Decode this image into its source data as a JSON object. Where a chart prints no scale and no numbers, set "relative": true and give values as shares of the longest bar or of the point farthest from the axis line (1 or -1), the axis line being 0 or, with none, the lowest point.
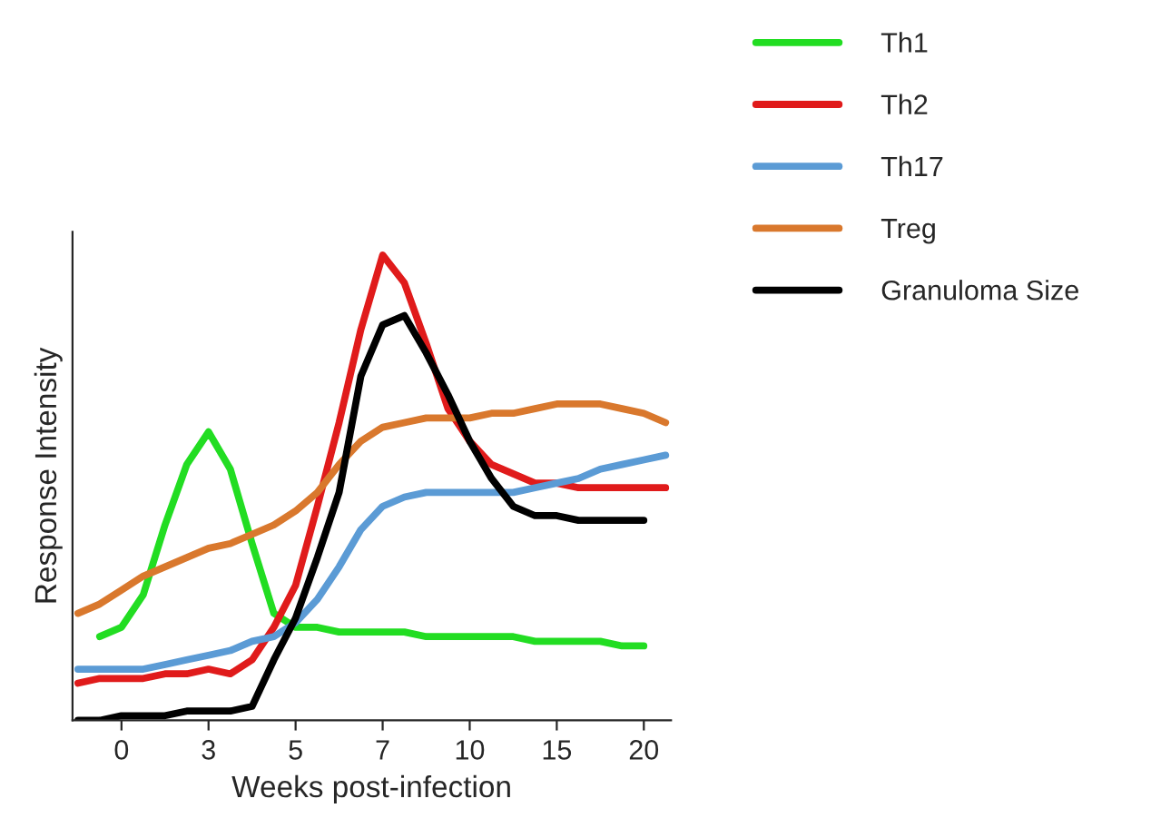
{
  "chart_data": {
    "type": "line",
    "xlabel": "Weeks post-infection",
    "ylabel": "Response Intensity",
    "relative": true,
    "legend": "top right",
    "grid": false,
    "categories": [
      null,
      null,
      "0",
      null,
      null,
      null,
      "3",
      null,
      null,
      null,
      "5",
      null,
      null,
      null,
      "7",
      null,
      null,
      null,
      "10",
      null,
      null,
      null,
      "15",
      null,
      null,
      null,
      "20",
      null
    ],
    "series": [
      {
        "name": "Th1",
        "color": "#22dd22",
        "values": [
          null,
          0.18,
          0.2,
          0.27,
          0.42,
          0.55,
          0.62,
          0.54,
          0.38,
          0.23,
          0.2,
          0.2,
          0.19,
          0.19,
          0.19,
          0.19,
          0.18,
          0.18,
          0.18,
          0.18,
          0.18,
          0.17,
          0.17,
          0.17,
          0.17,
          0.16,
          0.16,
          null
        ]
      },
      {
        "name": "Th2",
        "color": "#e01b1b",
        "values": [
          0.08,
          0.09,
          0.09,
          0.09,
          0.1,
          0.1,
          0.11,
          0.1,
          0.13,
          0.2,
          0.29,
          0.46,
          0.64,
          0.84,
          1.0,
          0.94,
          0.81,
          0.67,
          0.6,
          0.55,
          0.53,
          0.51,
          0.51,
          0.5,
          0.5,
          0.5,
          0.5,
          0.5
        ]
      },
      {
        "name": "Th17",
        "color": "#5b9bd5",
        "values": [
          0.11,
          0.11,
          0.11,
          0.11,
          0.12,
          0.13,
          0.14,
          0.15,
          0.17,
          0.18,
          0.21,
          0.26,
          0.33,
          0.41,
          0.46,
          0.48,
          0.49,
          0.49,
          0.49,
          0.49,
          0.49,
          0.5,
          0.51,
          0.52,
          0.54,
          0.55,
          0.56,
          0.57
        ]
      },
      {
        "name": "Treg",
        "color": "#d9782d",
        "values": [
          0.23,
          0.25,
          0.28,
          0.31,
          0.33,
          0.35,
          0.37,
          0.38,
          0.4,
          0.42,
          0.45,
          0.49,
          0.55,
          0.6,
          0.63,
          0.64,
          0.65,
          0.65,
          0.65,
          0.66,
          0.66,
          0.67,
          0.68,
          0.68,
          0.68,
          0.67,
          0.66,
          0.64
        ]
      },
      {
        "name": "Granuloma Size",
        "color": "#000000",
        "values": [
          0.0,
          0.0,
          0.01,
          0.01,
          0.01,
          0.02,
          0.02,
          0.02,
          0.03,
          0.13,
          0.22,
          0.35,
          0.49,
          0.74,
          0.85,
          0.87,
          0.79,
          0.7,
          0.6,
          0.52,
          0.46,
          0.44,
          0.44,
          0.43,
          0.43,
          0.43,
          0.43,
          null
        ]
      }
    ]
  }
}
